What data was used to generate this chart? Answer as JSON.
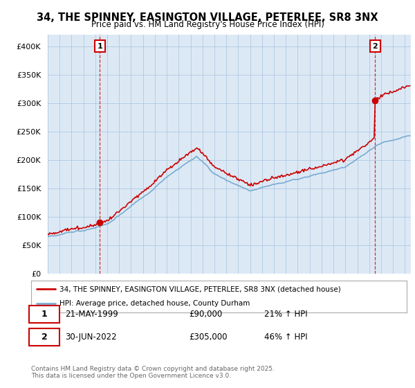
{
  "title": "34, THE SPINNEY, EASINGTON VILLAGE, PETERLEE, SR8 3NX",
  "subtitle": "Price paid vs. HM Land Registry's House Price Index (HPI)",
  "ylim": [
    0,
    420000
  ],
  "xlim_start": 1995.0,
  "xlim_end": 2025.5,
  "legend_line1": "34, THE SPINNEY, EASINGTON VILLAGE, PETERLEE, SR8 3NX (detached house)",
  "legend_line2": "HPI: Average price, detached house, County Durham",
  "point1_date": "21-MAY-1999",
  "point1_price": "£90,000",
  "point1_hpi": "21% ↑ HPI",
  "point2_date": "30-JUN-2022",
  "point2_price": "£305,000",
  "point2_hpi": "46% ↑ HPI",
  "footer": "Contains HM Land Registry data © Crown copyright and database right 2025.\nThis data is licensed under the Open Government Licence v3.0.",
  "red_color": "#cc0000",
  "blue_color": "#7aabcf",
  "bg_color": "#dce9f5",
  "plot_bg": "#dce9f5",
  "grid_color": "#b0c8e0",
  "point1_x": 1999.38,
  "point1_y": 90000,
  "point2_x": 2022.5,
  "point2_y": 305000
}
